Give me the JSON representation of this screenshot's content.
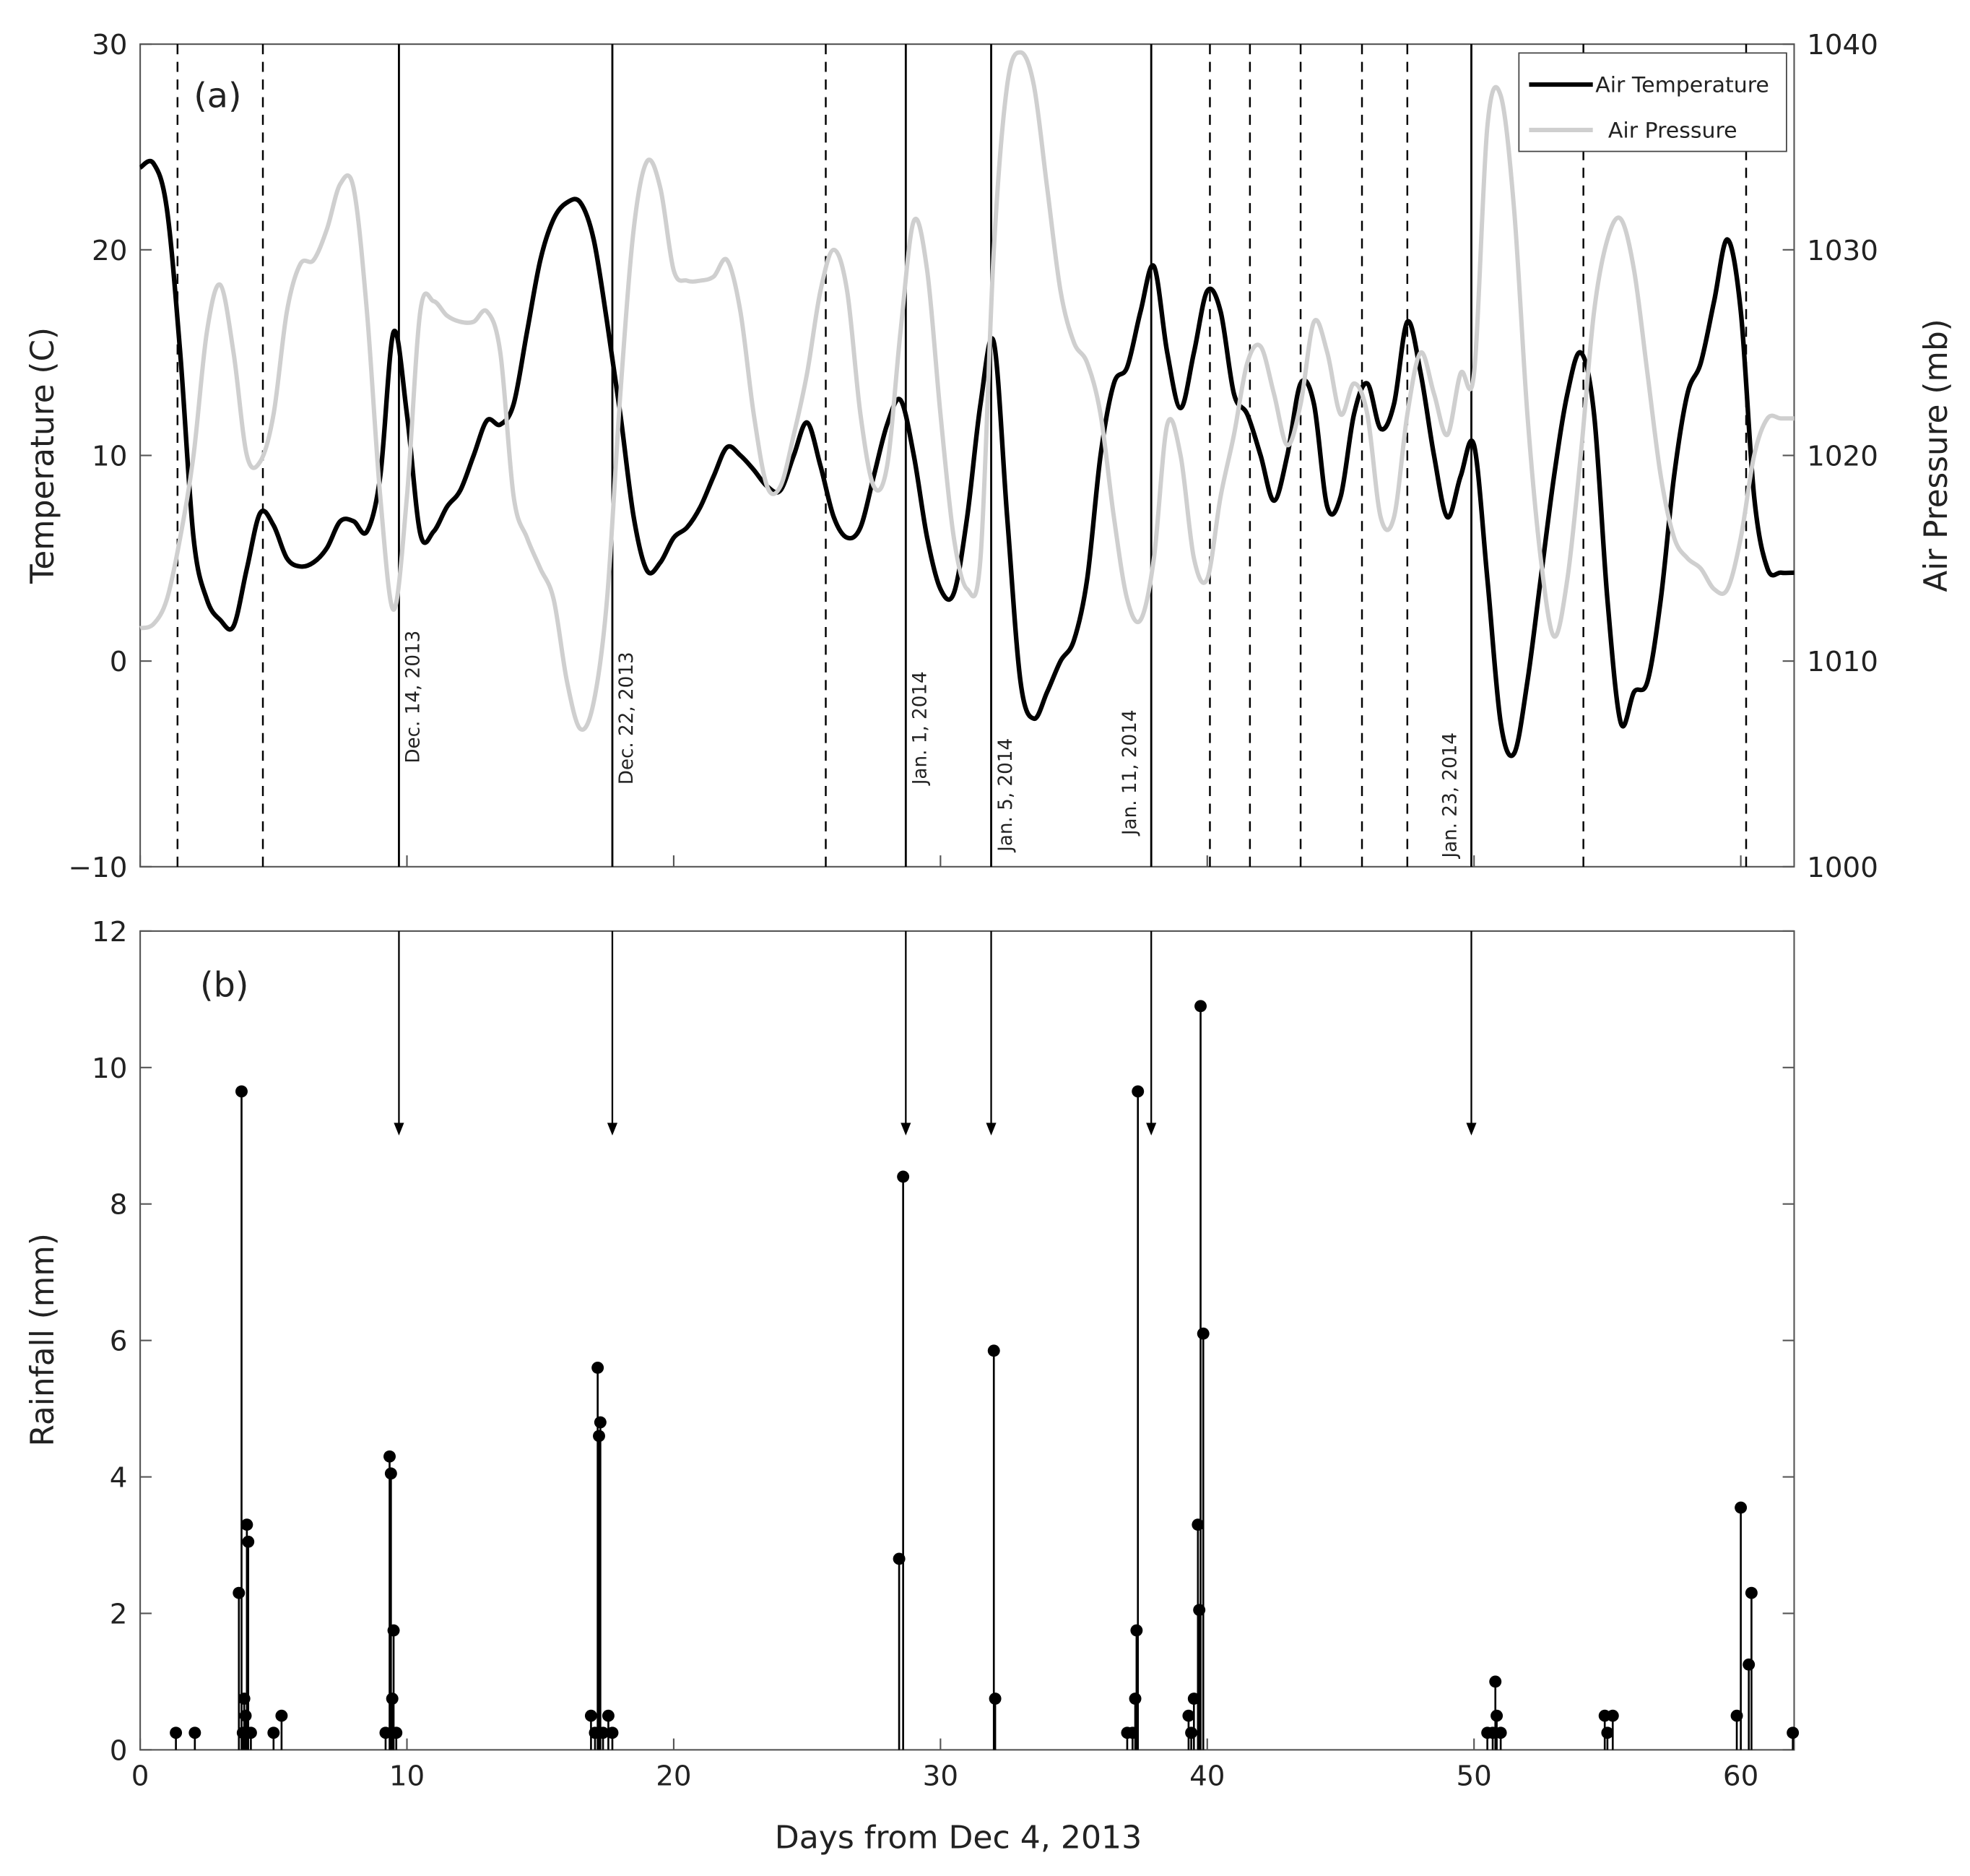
{
  "chart_data": [
    {
      "type": "line",
      "panel_label": "(a)",
      "ylabel": "Temperature (C)",
      "y2label": "Air Pressure (mb)",
      "legend": "upper right",
      "xlim": [
        0,
        62
      ],
      "xticks": [
        0,
        10,
        20,
        30,
        40,
        50,
        60
      ],
      "ylim": [
        -10,
        30
      ],
      "yticks": [
        {
          "value": -10,
          "label": "−10"
        },
        0,
        10,
        20,
        30
      ],
      "y2lim": [
        1000,
        1040
      ],
      "y2ticks": [
        1000,
        1010,
        1020,
        1030,
        1040
      ],
      "x": [
        0,
        0.5,
        1,
        1.5,
        2,
        2.5,
        3,
        3.5,
        4,
        4.5,
        5,
        5.5,
        6,
        6.5,
        7,
        7.5,
        8,
        8.5,
        9,
        9.5,
        10,
        10.5,
        11,
        11.5,
        12,
        12.5,
        13,
        13.5,
        14,
        14.5,
        15,
        15.5,
        16,
        16.5,
        17,
        17.5,
        18,
        18.5,
        19,
        19.5,
        20,
        20.5,
        21,
        21.5,
        22,
        22.5,
        23,
        23.5,
        24,
        24.5,
        25,
        25.5,
        26,
        26.5,
        27,
        27.5,
        28,
        28.5,
        29,
        29.5,
        30,
        30.5,
        31,
        31.5,
        32,
        32.5,
        33,
        33.5,
        34,
        34.5,
        35,
        35.5,
        36,
        36.5,
        37,
        37.5,
        38,
        38.5,
        39,
        39.5,
        40,
        40.5,
        41,
        41.5,
        42,
        42.5,
        43,
        43.5,
        44,
        44.5,
        45,
        45.5,
        46,
        46.5,
        47,
        47.5,
        48,
        48.5,
        49,
        49.5,
        50,
        50.5,
        51,
        51.5,
        52,
        52.5,
        53,
        53.5,
        54,
        54.5,
        55,
        55.5,
        56,
        56.5,
        57,
        57.5,
        58,
        58.5,
        59,
        59.5,
        60,
        60.5,
        61,
        61.5,
        62
      ],
      "series": [
        {
          "name": "Air Temperature",
          "color": "#000000",
          "values": [
            24,
            24.2,
            22,
            15,
            6,
            3,
            2,
            1.7,
            4.5,
            7.2,
            6.6,
            5,
            4.6,
            4.8,
            5.5,
            6.8,
            6.8,
            6.3,
            9,
            16,
            12,
            6.2,
            6.3,
            7.5,
            8.3,
            10,
            11.7,
            11.5,
            12.5,
            16,
            19.5,
            21.5,
            22.3,
            22.3,
            20.5,
            16.5,
            12,
            7,
            4.4,
            4.8,
            6,
            6.5,
            7.5,
            9,
            10.4,
            10,
            9.3,
            8.5,
            8.3,
            10,
            11.6,
            9.5,
            7,
            6,
            6.5,
            9,
            11.5,
            12.7,
            10,
            6,
            3.5,
            3.3,
            7,
            12.5,
            15.5,
            7,
            -1,
            -2.8,
            -1.5,
            0,
            1,
            4,
            10,
            13.5,
            14.3,
            17,
            19.2,
            15,
            12.3,
            15,
            18,
            17,
            13,
            12,
            10,
            7.8,
            10,
            13.5,
            12.5,
            7.5,
            8,
            12,
            13.5,
            11.3,
            12.5,
            16.5,
            14,
            10,
            7,
            9,
            10.5,
            4,
            -3,
            -4.5,
            -1,
            4,
            9,
            13,
            15,
            12,
            3,
            -3,
            -1.5,
            -1,
            3,
            9,
            13,
            14.5,
            17.5,
            20.5,
            17,
            8,
            4.5,
            4.3,
            4.3
          ]
        },
        {
          "name": "Air Pressure",
          "color": "#cfcfcf",
          "axis": "y2",
          "values": [
            1011.6,
            1011.8,
            1013,
            1016,
            1020,
            1026,
            1028.3,
            1025,
            1020,
            1019.7,
            1022,
            1027,
            1029.3,
            1029.5,
            1031,
            1033.2,
            1033,
            1027,
            1018,
            1012.5,
            1018,
            1027,
            1027.5,
            1026.8,
            1026.5,
            1026.5,
            1027,
            1025,
            1018,
            1016,
            1014.5,
            1013,
            1009,
            1006.7,
            1008,
            1013,
            1023,
            1031,
            1034.3,
            1033,
            1029,
            1028.5,
            1028.5,
            1028.7,
            1029.5,
            1027,
            1022,
            1018.5,
            1018.5,
            1021,
            1024,
            1028,
            1030,
            1028,
            1022,
            1018.5,
            1019.5,
            1026,
            1031.4,
            1029,
            1022,
            1016,
            1013.5,
            1015,
            1030,
            1038,
            1039.6,
            1038,
            1033,
            1028,
            1025.5,
            1024.5,
            1022,
            1017,
            1013,
            1012,
            1015,
            1021.5,
            1020,
            1015,
            1014,
            1018,
            1021,
            1024.5,
            1025.3,
            1023,
            1020.5,
            1022.5,
            1026.5,
            1025,
            1022,
            1023.5,
            1022,
            1017,
            1017,
            1022,
            1025,
            1023,
            1021,
            1024,
            1024,
            1036,
            1037.5,
            1032,
            1022,
            1015,
            1011.2,
            1014,
            1020,
            1027,
            1030.5,
            1031.5,
            1029,
            1024,
            1019,
            1016,
            1015,
            1014.5,
            1013.5,
            1013.5,
            1016,
            1020,
            1021.8,
            1021.8,
            1021.8
          ]
        }
      ],
      "events": [
        {
          "x": 1.4,
          "style": "dashed"
        },
        {
          "x": 4.6,
          "style": "dashed"
        },
        {
          "x": 9.7,
          "style": "solid",
          "label": "Dec. 14, 2013"
        },
        {
          "x": 17.7,
          "style": "solid",
          "label": "Dec. 22, 2013"
        },
        {
          "x": 25.7,
          "style": "dashed"
        },
        {
          "x": 28.7,
          "style": "solid",
          "label": "Jan. 1, 2014"
        },
        {
          "x": 31.9,
          "style": "solid",
          "label": "Jan. 5, 2014"
        },
        {
          "x": 37.9,
          "style": "solid",
          "label": "Jan. 11, 2014"
        },
        {
          "x": 40.1,
          "style": "dashed"
        },
        {
          "x": 41.6,
          "style": "dashed"
        },
        {
          "x": 43.5,
          "style": "dashed"
        },
        {
          "x": 45.8,
          "style": "dashed"
        },
        {
          "x": 47.5,
          "style": "dashed"
        },
        {
          "x": 49.9,
          "style": "solid",
          "label": "Jan. 23, 2014"
        },
        {
          "x": 54.1,
          "style": "dashed"
        },
        {
          "x": 60.2,
          "style": "dashed"
        }
      ]
    },
    {
      "type": "stem",
      "panel_label": "(b)",
      "ylabel": "Rainfall (mm)",
      "xlabel": "Days from Dec 4, 2013",
      "color": "#000000",
      "xlim": [
        0,
        62
      ],
      "xticks": [
        0,
        10,
        20,
        30,
        40,
        50,
        60
      ],
      "ylim": [
        0,
        12
      ],
      "yticks": [
        0,
        2,
        4,
        6,
        8,
        10,
        12
      ],
      "x": [
        1.34,
        2.05,
        3.7,
        3.8,
        3.85,
        3.9,
        3.95,
        4.0,
        4.05,
        4.15,
        5.0,
        5.3,
        9.2,
        9.35,
        9.4,
        9.45,
        9.5,
        9.6,
        16.9,
        17.05,
        17.15,
        17.2,
        17.25,
        17.35,
        17.55,
        17.7,
        28.45,
        28.6,
        32.0,
        32.05,
        37.0,
        37.2,
        37.3,
        37.35,
        37.4,
        39.3,
        39.4,
        39.5,
        39.65,
        39.7,
        39.75,
        39.85,
        50.5,
        50.7,
        50.8,
        50.85,
        51.0,
        54.9,
        55.0,
        55.2,
        59.85,
        60.0,
        60.3,
        60.4,
        61.95
      ],
      "values": [
        0.25,
        0.25,
        2.3,
        9.65,
        0.25,
        0.75,
        0.5,
        3.3,
        3.05,
        0.25,
        0.25,
        0.5,
        0.25,
        4.3,
        4.05,
        0.75,
        1.75,
        0.25,
        0.5,
        0.25,
        5.6,
        4.6,
        4.8,
        0.25,
        0.5,
        0.25,
        2.8,
        8.4,
        5.85,
        0.75,
        0.25,
        0.25,
        0.75,
        1.75,
        9.65,
        0.5,
        0.25,
        0.75,
        3.3,
        2.05,
        10.9,
        6.1,
        0.25,
        0.25,
        1.0,
        0.5,
        0.25,
        0.5,
        0.25,
        0.5,
        0.5,
        3.55,
        1.25,
        2.3,
        0.25
      ]
    }
  ]
}
